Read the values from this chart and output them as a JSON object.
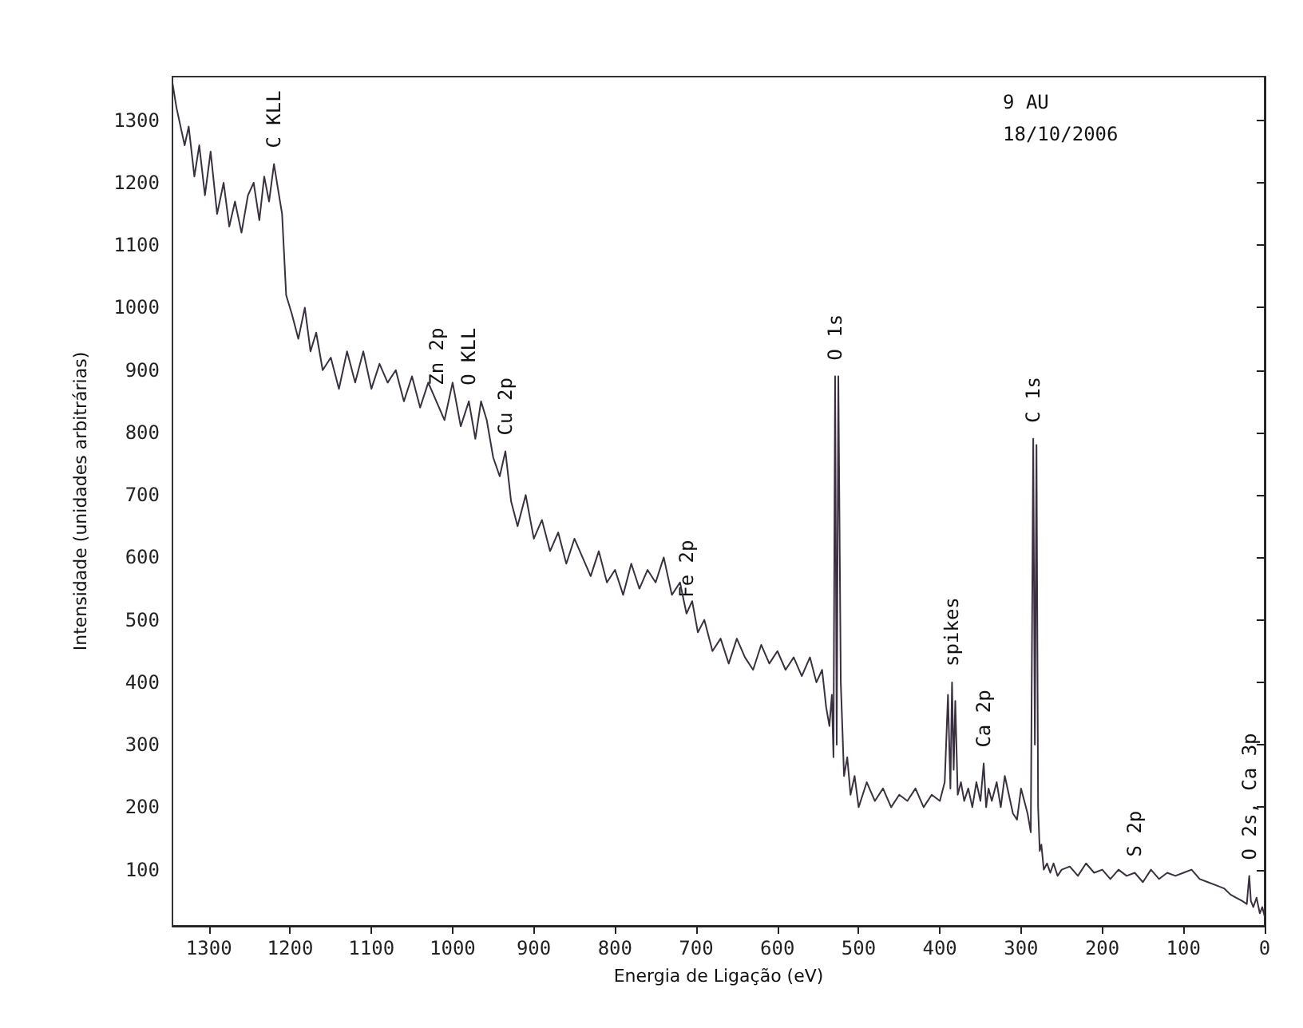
{
  "chart_data": {
    "type": "line",
    "xlabel": "Energia de Ligação (eV)",
    "ylabel": "Intensidade (unidades arbitrárias)",
    "xlim": [
      1345,
      0
    ],
    "ylim": [
      10,
      1370
    ],
    "xticks": [
      1300,
      1200,
      1100,
      1000,
      900,
      800,
      700,
      600,
      500,
      400,
      300,
      200,
      100,
      0
    ],
    "yticks": [
      100,
      200,
      300,
      400,
      500,
      600,
      700,
      800,
      900,
      1000,
      1100,
      1200,
      1300
    ],
    "grid": false,
    "marker": "none",
    "line_style": "solid",
    "series": [
      {
        "color": "#3a3040",
        "x": [
          1345,
          1340,
          1335,
          1330,
          1325,
          1318,
          1312,
          1305,
          1298,
          1290,
          1282,
          1275,
          1268,
          1260,
          1252,
          1245,
          1238,
          1232,
          1226,
          1220,
          1215,
          1210,
          1205,
          1198,
          1190,
          1182,
          1175,
          1168,
          1160,
          1150,
          1140,
          1130,
          1120,
          1110,
          1100,
          1090,
          1080,
          1070,
          1060,
          1050,
          1040,
          1030,
          1020,
          1010,
          1000,
          990,
          980,
          972,
          965,
          958,
          950,
          942,
          935,
          928,
          920,
          910,
          900,
          890,
          880,
          870,
          860,
          850,
          840,
          830,
          820,
          810,
          800,
          790,
          780,
          770,
          760,
          750,
          740,
          730,
          720,
          712,
          705,
          698,
          690,
          680,
          670,
          660,
          650,
          640,
          630,
          620,
          610,
          600,
          590,
          580,
          570,
          560,
          552,
          545,
          540,
          536,
          533,
          531,
          529,
          527,
          525,
          522,
          518,
          514,
          510,
          505,
          500,
          490,
          480,
          470,
          460,
          450,
          440,
          430,
          420,
          410,
          400,
          394,
          390,
          387,
          385,
          383,
          381,
          378,
          374,
          370,
          365,
          360,
          355,
          350,
          346,
          343,
          340,
          336,
          330,
          325,
          320,
          315,
          310,
          305,
          300,
          296,
          292,
          288,
          285,
          283,
          281,
          279,
          277,
          275,
          272,
          268,
          264,
          260,
          255,
          250,
          240,
          230,
          220,
          210,
          200,
          190,
          180,
          170,
          160,
          150,
          140,
          130,
          120,
          110,
          100,
          90,
          80,
          70,
          60,
          50,
          42,
          35,
          28,
          22,
          19,
          17,
          14,
          10,
          6,
          3,
          0
        ],
        "values": [
          1360,
          1320,
          1290,
          1260,
          1290,
          1210,
          1260,
          1180,
          1250,
          1150,
          1200,
          1130,
          1170,
          1120,
          1180,
          1200,
          1140,
          1210,
          1170,
          1230,
          1190,
          1150,
          1020,
          990,
          950,
          1000,
          930,
          960,
          900,
          920,
          870,
          930,
          880,
          930,
          870,
          910,
          880,
          900,
          850,
          890,
          840,
          880,
          850,
          820,
          880,
          810,
          850,
          790,
          850,
          820,
          760,
          730,
          770,
          690,
          650,
          700,
          630,
          660,
          610,
          640,
          590,
          630,
          600,
          570,
          610,
          560,
          580,
          540,
          590,
          550,
          580,
          560,
          600,
          540,
          560,
          510,
          530,
          480,
          500,
          450,
          470,
          430,
          470,
          440,
          420,
          460,
          430,
          450,
          420,
          440,
          410,
          440,
          400,
          420,
          360,
          330,
          380,
          280,
          890,
          300,
          890,
          400,
          250,
          280,
          220,
          250,
          200,
          240,
          210,
          230,
          200,
          220,
          210,
          230,
          200,
          220,
          210,
          240,
          380,
          230,
          400,
          260,
          370,
          220,
          240,
          210,
          230,
          200,
          240,
          210,
          270,
          200,
          230,
          210,
          240,
          200,
          250,
          220,
          190,
          180,
          230,
          210,
          190,
          160,
          790,
          300,
          780,
          200,
          130,
          140,
          100,
          110,
          95,
          110,
          90,
          100,
          105,
          90,
          110,
          95,
          100,
          85,
          100,
          90,
          95,
          80,
          100,
          85,
          95,
          90,
          95,
          100,
          85,
          80,
          75,
          70,
          60,
          55,
          50,
          45,
          90,
          50,
          40,
          55,
          30,
          40,
          25
        ]
      }
    ],
    "annotations": [
      {
        "text": "C KLL",
        "x": 1220,
        "y": 1230
      },
      {
        "text": "Zn 2p",
        "x": 1020,
        "y": 850
      },
      {
        "text": "O KLL",
        "x": 980,
        "y": 850
      },
      {
        "text": "Cu 2p",
        "x": 935,
        "y": 770
      },
      {
        "text": "Fe 2p",
        "x": 712,
        "y": 510
      },
      {
        "text": "O 1s",
        "x": 529,
        "y": 890
      },
      {
        "text": "spikes",
        "x": 385,
        "y": 400
      },
      {
        "text": "Ca 2p",
        "x": 346,
        "y": 270
      },
      {
        "text": "C 1s",
        "x": 285,
        "y": 790
      },
      {
        "text": "S 2p",
        "x": 160,
        "y": 95
      },
      {
        "text": "O 2s, Ca 3p",
        "x": 19,
        "y": 90
      },
      "9 AU",
      "18/10/2006"
    ]
  }
}
